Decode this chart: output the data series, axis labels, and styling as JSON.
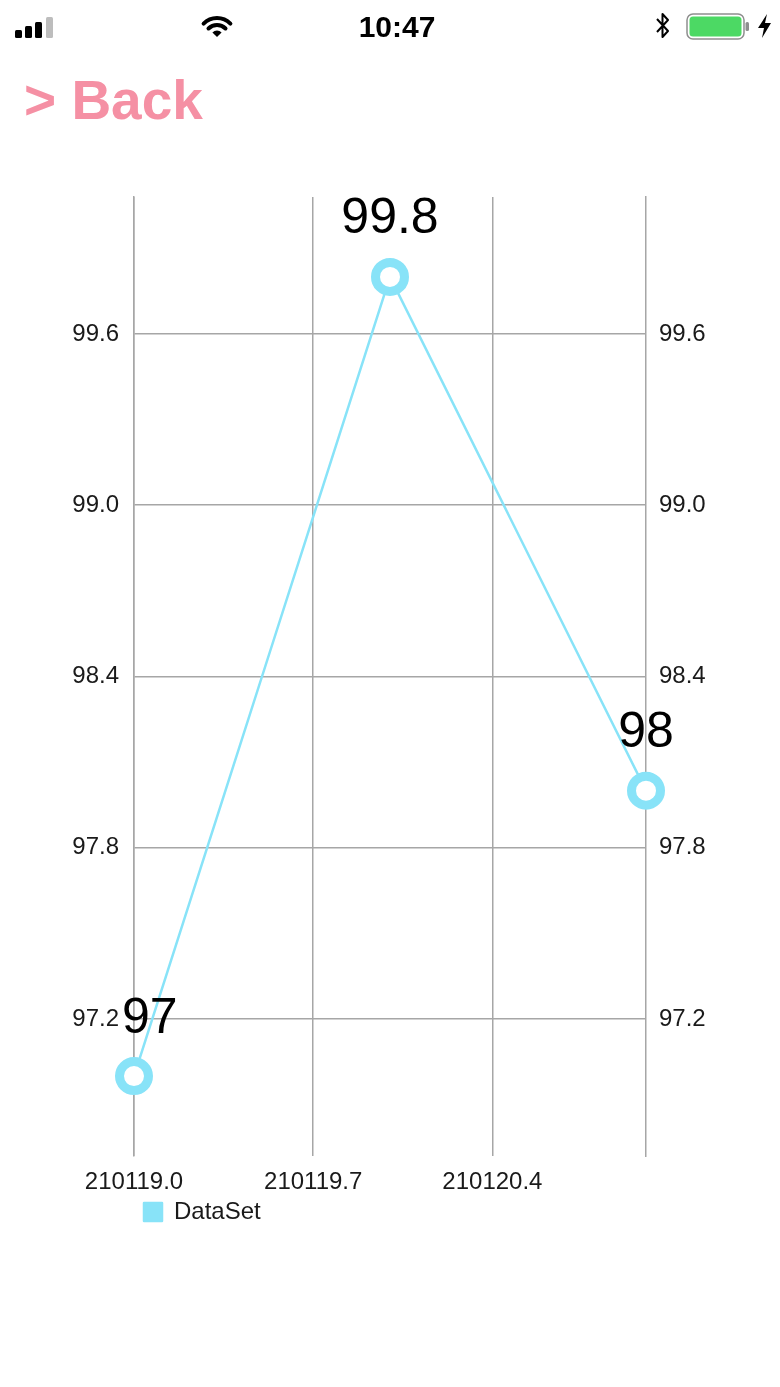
{
  "chart_data": {
    "type": "line",
    "x": [
      210119,
      210120,
      210121
    ],
    "series": [
      {
        "name": "DataSet",
        "color": "#88e3f8",
        "values": [
          97,
          99.8,
          98
        ]
      }
    ],
    "xlim": [
      210119,
      210121
    ],
    "xticks": [
      {
        "value": 210119,
        "label": "210119.0"
      },
      210119.7,
      210120.4
    ],
    "ylim": [
      96.72,
      100.08
    ],
    "yticks": [
      97.2,
      97.8,
      98.4,
      {
        "value": 99,
        "label": "99.0"
      },
      99.6
    ],
    "y2lim": [
      96.72,
      100.08
    ],
    "y2ticks": [
      97.2,
      97.8,
      98.4,
      {
        "value": 99,
        "label": "99.0"
      },
      99.6
    ],
    "grid": true,
    "legend": "bottom left",
    "marker": "circle",
    "data_labels": true,
    "annotations": [
      "10:47",
      "> Back"
    ]
  }
}
